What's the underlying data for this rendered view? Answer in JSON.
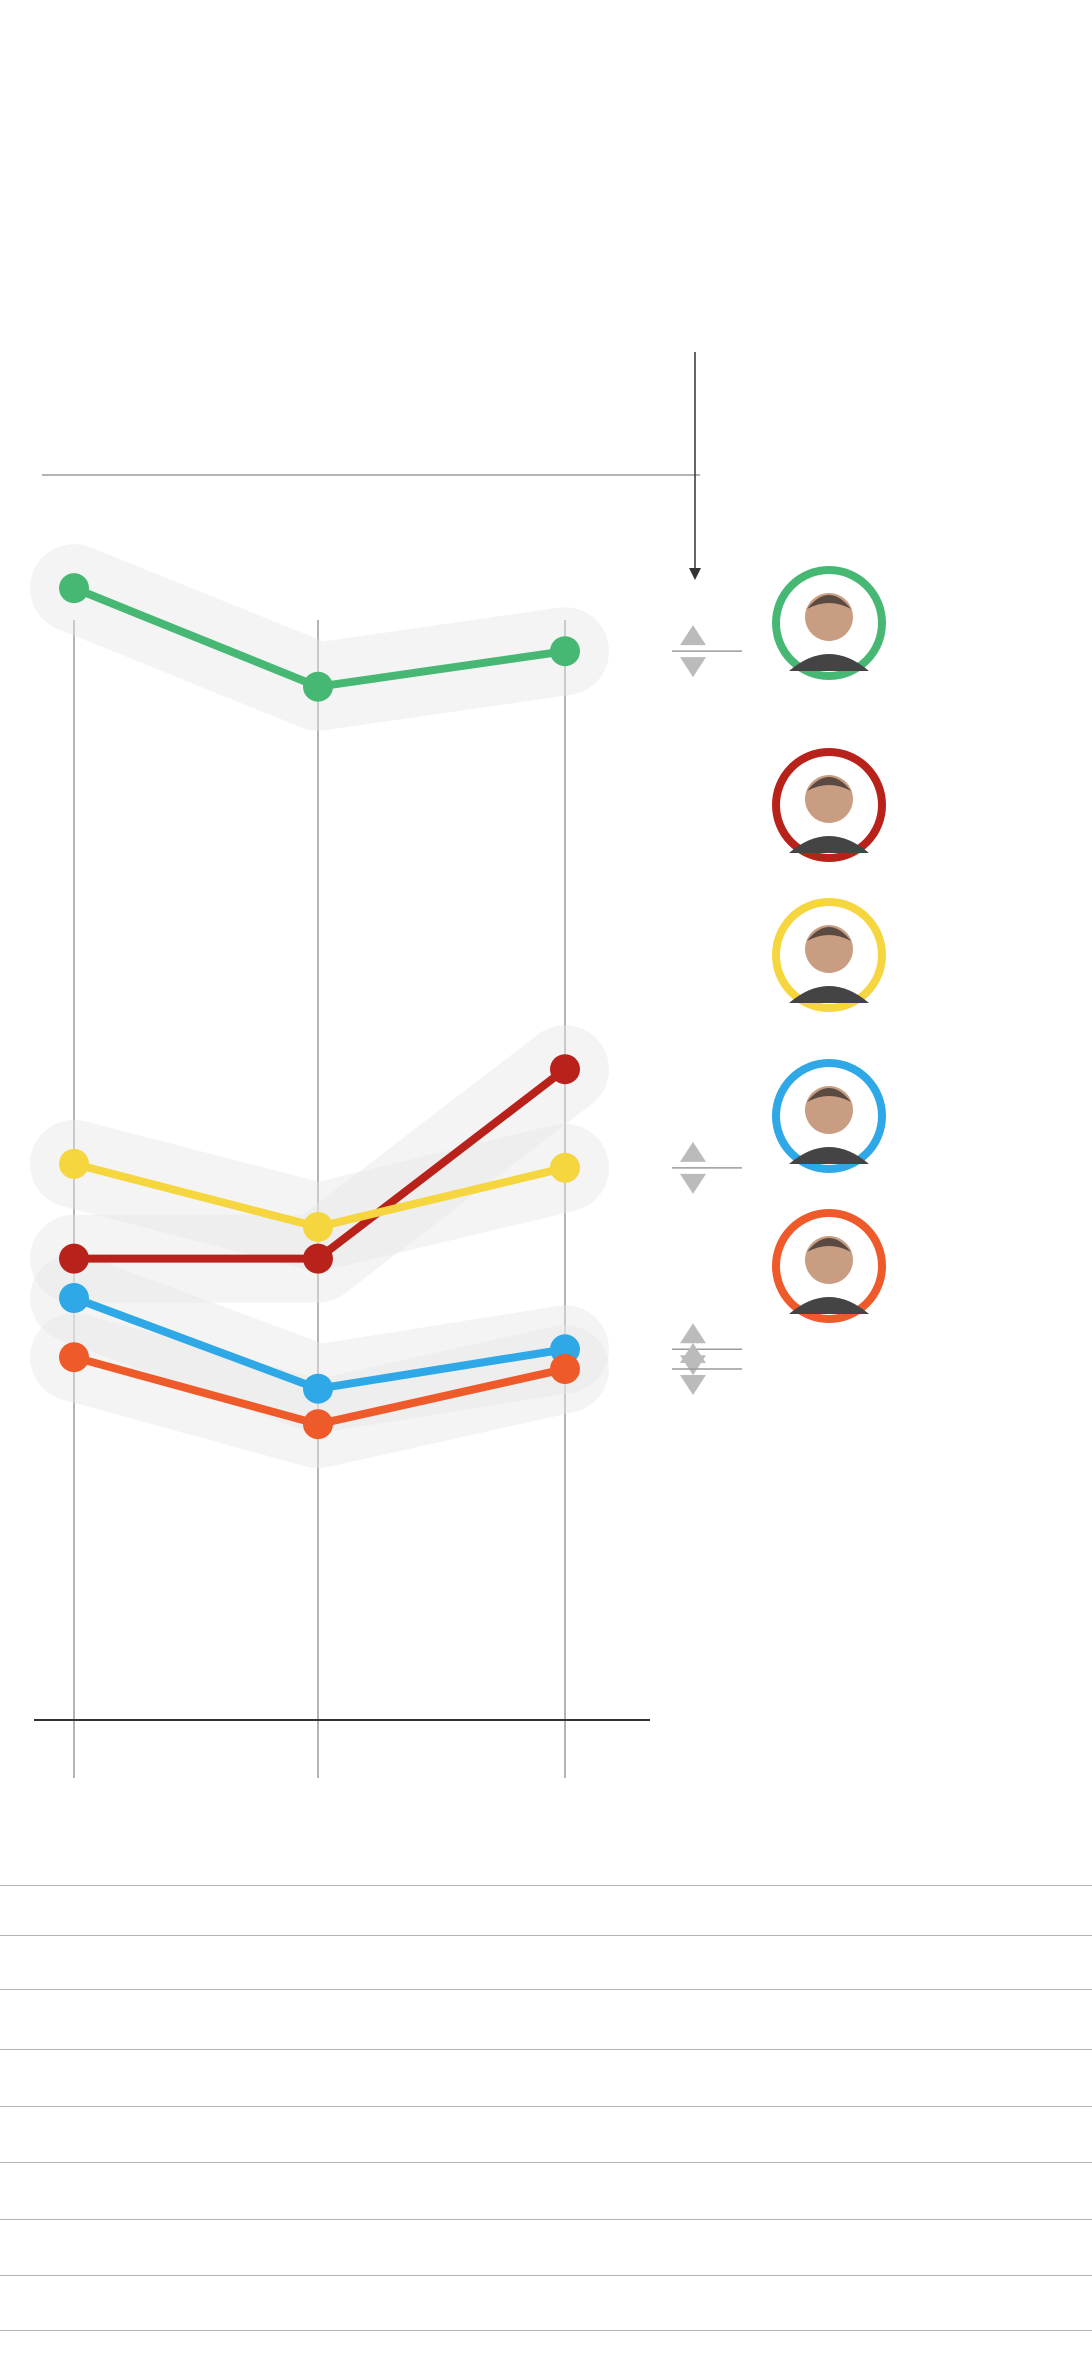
{
  "chart_data": {
    "type": "line",
    "title": "",
    "xlabel": "",
    "ylabel": "",
    "x": [
      "",
      "",
      ""
    ],
    "ylim": [
      0,
      40
    ],
    "grid": false,
    "legend": "right",
    "series": [
      {
        "id": "green",
        "color": "#46b874",
        "values": [
          28.7,
          26.2,
          27.1
        ],
        "change": "up"
      },
      {
        "id": "red",
        "color": "#b8221b",
        "values": [
          11.7,
          11.7,
          16.5
        ],
        "change": null
      },
      {
        "id": "yellow",
        "color": "#f6d63f",
        "values": [
          14.1,
          12.5,
          14.0
        ],
        "change": "up"
      },
      {
        "id": "blue",
        "color": "#2ea8e6",
        "values": [
          10.7,
          8.4,
          9.4
        ],
        "change": "up"
      },
      {
        "id": "orange",
        "color": "#ef5a2b",
        "values": [
          9.2,
          7.5,
          8.9
        ],
        "change": "up"
      }
    ],
    "legend_colors": {
      "green": "#46b874",
      "red": "#b8221b",
      "yellow": "#f6d63f",
      "blue": "#2ea8e6",
      "orange": "#ef5a2b"
    }
  },
  "colors": {
    "halo": "#e6e6e6",
    "axis": "#9b9b9b",
    "baseline": "#333333",
    "arrow_fill": "#bbbbbb",
    "rule": "#b3b3b3"
  },
  "table_rows": 9
}
